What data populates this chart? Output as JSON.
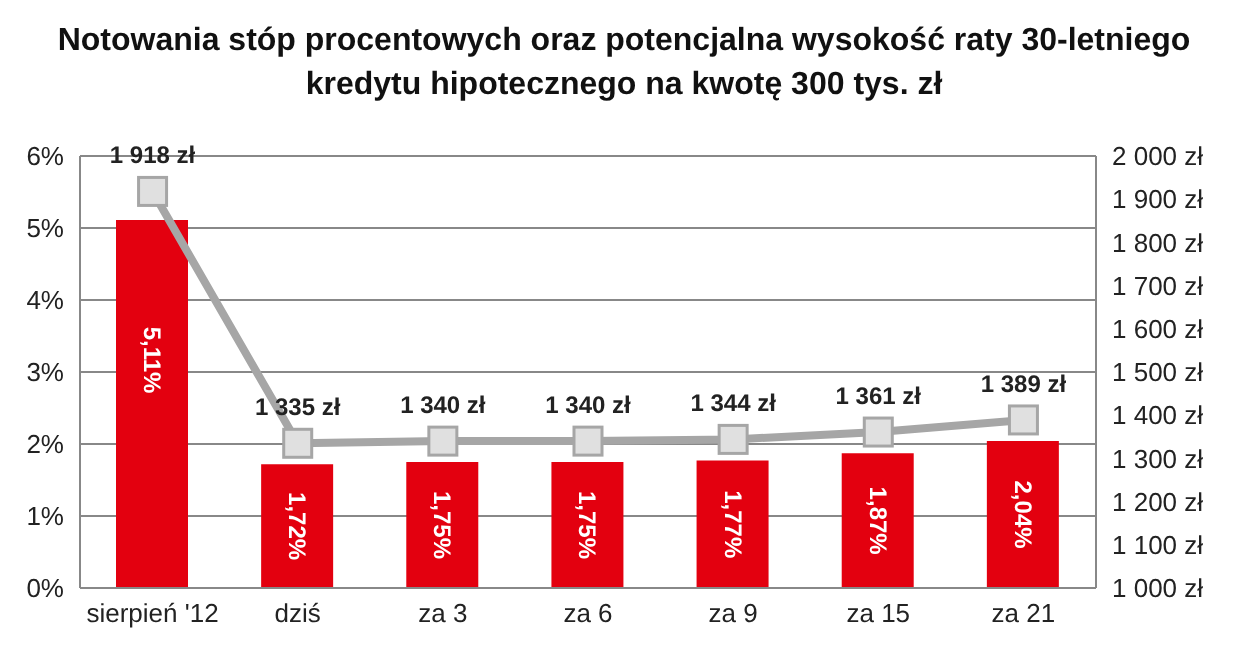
{
  "chart_data": {
    "type": "bar",
    "title": "Notowania stóp procentowych oraz potencjalna wysokość raty 30-letniego kredytu hipotecznego na kwotę 300 tys. zł",
    "categories": [
      "sierpień '12",
      "dziś",
      "za 3",
      "za 6",
      "za 9",
      "za 15",
      "za 21"
    ],
    "series": [
      {
        "color": "#e3000f",
        "values": [
          5.11,
          1.72,
          1.75,
          1.75,
          1.77,
          1.87,
          2.04
        ],
        "value_labels": [
          "5,11%",
          "1,72%",
          "1,75%",
          "1,75%",
          "1,77%",
          "1,87%",
          "2,04%"
        ]
      },
      {
        "type": "line",
        "axis": "y2",
        "color": "#a6a6a6",
        "marker": "square",
        "values": [
          1918,
          1335,
          1340,
          1340,
          1344,
          1361,
          1389
        ],
        "value_labels": [
          "1 918 zł",
          "1 335 zł",
          "1 340 zł",
          "1 340 zł",
          "1 344 zł",
          "1 361 zł",
          "1 389 zł"
        ]
      }
    ],
    "ylim": [
      0,
      6
    ],
    "yticks": [
      {
        "value": 0,
        "label": "0%"
      },
      {
        "value": 1,
        "label": "1%"
      },
      {
        "value": 2,
        "label": "2%"
      },
      {
        "value": 3,
        "label": "3%"
      },
      {
        "value": 4,
        "label": "4%"
      },
      {
        "value": 5,
        "label": "5%"
      },
      {
        "value": 6,
        "label": "6%"
      }
    ],
    "y2lim": [
      1000,
      2000
    ],
    "y2ticks": [
      {
        "value": 1000,
        "label": "1 000 zł"
      },
      {
        "value": 1100,
        "label": "1 100 zł"
      },
      {
        "value": 1200,
        "label": "1 200 zł"
      },
      {
        "value": 1300,
        "label": "1 300 zł"
      },
      {
        "value": 1400,
        "label": "1 400 zł"
      },
      {
        "value": 1500,
        "label": "1 500 zł"
      },
      {
        "value": 1600,
        "label": "1 600 zł"
      },
      {
        "value": 1700,
        "label": "1 700 zł"
      },
      {
        "value": 1800,
        "label": "1 800 zł"
      },
      {
        "value": 1900,
        "label": "1 900 zł"
      },
      {
        "value": 2000,
        "label": "2 000 zł"
      }
    ],
    "grid": "y",
    "legend": false
  }
}
